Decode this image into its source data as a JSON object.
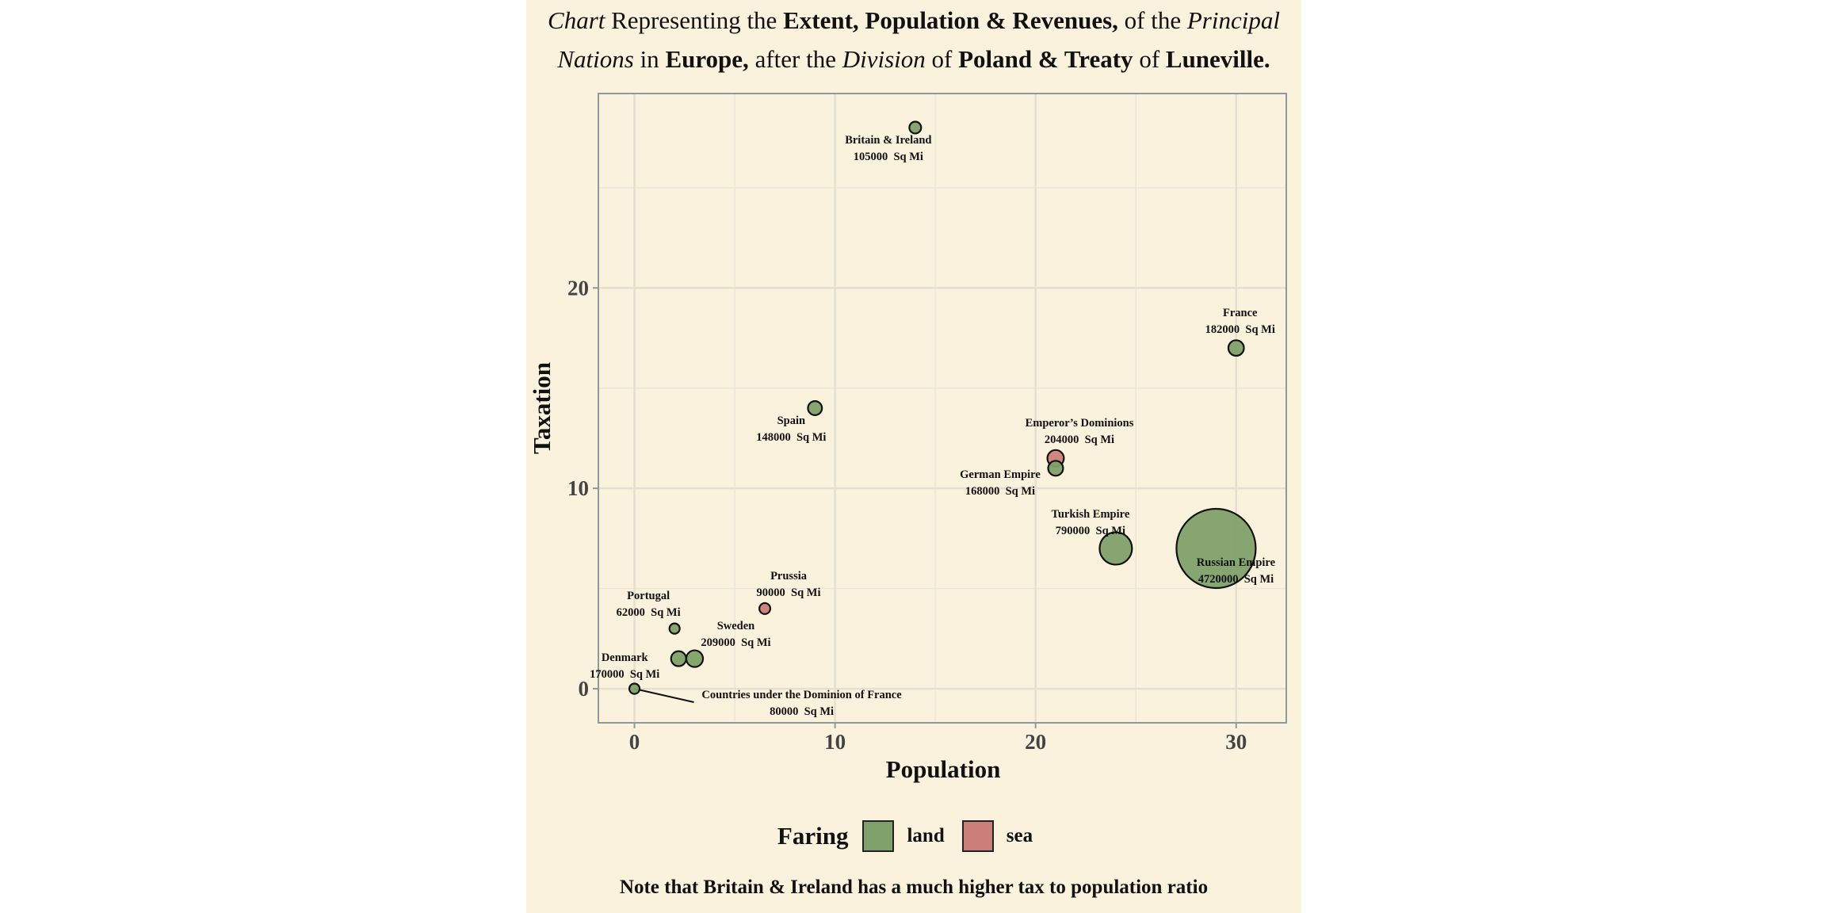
{
  "title": {
    "line1": [
      "Chart",
      " Representing the ",
      "Extent, Population & Revenues,",
      " of the ",
      "Principal"
    ],
    "line2": [
      "Nations",
      " in ",
      "Europe,",
      " after the ",
      "Division",
      " of ",
      "Poland & Treaty",
      " of ",
      "Luneville."
    ]
  },
  "note": "Note that Britain & Ireland has a much higher tax to population ratio",
  "legend": {
    "title": "Faring",
    "items": [
      {
        "label": "land",
        "color": "#7fa06a"
      },
      {
        "label": "sea",
        "color": "#cc7f7a"
      }
    ]
  },
  "chart_data": {
    "type": "scatter",
    "xlabel": "Population",
    "ylabel": "Taxation",
    "xlim": [
      -1.8,
      32.5
    ],
    "ylim": [
      -1.7,
      29.7
    ],
    "x_ticks": [
      0,
      10,
      20,
      30
    ],
    "y_ticks": [
      0,
      10,
      20
    ],
    "grid": true,
    "legend_position": "bottom",
    "size_variable": "Extent (Sq Mi)",
    "area_unit": "Sq Mi",
    "colors": {
      "land": "#7fa06a",
      "sea": "#cc7f7a"
    },
    "points": [
      {
        "name": "Britain & Ireland",
        "x": 14,
        "y": 28,
        "area": "105000",
        "faring": "land"
      },
      {
        "name": "France",
        "x": 30,
        "y": 17,
        "area": "182000",
        "faring": "land"
      },
      {
        "name": "Spain",
        "x": 9,
        "y": 14,
        "area": "148000",
        "faring": "land"
      },
      {
        "name": "Emperor's Dominions",
        "x": 21,
        "y": 11.5,
        "area": "204000",
        "faring": "sea"
      },
      {
        "name": "German Empire",
        "x": 21,
        "y": 11,
        "area": "168000",
        "faring": "land"
      },
      {
        "name": "Turkish Empire",
        "x": 24,
        "y": 7,
        "area": "790000",
        "faring": "land"
      },
      {
        "name": "Russian Empire",
        "x": 29,
        "y": 7,
        "area": "4720000",
        "faring": "land"
      },
      {
        "name": "Prussia",
        "x": 6.5,
        "y": 4,
        "area": "90000",
        "faring": "sea"
      },
      {
        "name": "Portugal",
        "x": 2,
        "y": 3,
        "area": "62000",
        "faring": "land"
      },
      {
        "name": "Sweden",
        "x": 3,
        "y": 1.5,
        "area": "209000",
        "faring": "land"
      },
      {
        "name": "Denmark",
        "x": 2.2,
        "y": 1.5,
        "area": "170000",
        "faring": "land"
      },
      {
        "name": "Countries under the Dominion of France",
        "x": 0,
        "y": 0,
        "area": "80000",
        "faring": "land"
      }
    ]
  }
}
